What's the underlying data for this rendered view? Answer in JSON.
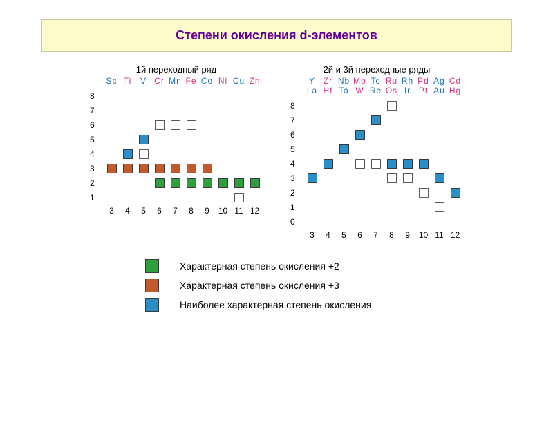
{
  "title": {
    "text": "Степени окисления d-элементов",
    "background": "#fdfacb",
    "border": "#c9c9a0",
    "fontsize": 18,
    "color": "#660099"
  },
  "colors": {
    "green": "#2e9e3f",
    "orange": "#c35a2e",
    "blue": "#2a8fc7",
    "empty_border": "#5a5a5a",
    "square_border": "#3a3a3a"
  },
  "element_colors": {
    "default": "#1a73b7",
    "alt": "#d63384"
  },
  "square": {
    "size": 14,
    "gap": 9
  },
  "y_row_height": 21,
  "chart1": {
    "subtitle": "1й переходный ряд",
    "elements": [
      {
        "t": "Sc",
        "c": "default"
      },
      {
        "t": "Ti",
        "c": "alt"
      },
      {
        "t": "V",
        "c": "default"
      },
      {
        "t": "Cr",
        "c": "alt"
      },
      {
        "t": "Mn",
        "c": "default"
      },
      {
        "t": "Fe",
        "c": "alt"
      },
      {
        "t": "Co",
        "c": "default"
      },
      {
        "t": "Ni",
        "c": "alt"
      },
      {
        "t": "Cu",
        "c": "default"
      },
      {
        "t": "Zn",
        "c": "alt"
      }
    ],
    "ylim": [
      1,
      8
    ],
    "xticks": [
      3,
      4,
      5,
      6,
      7,
      8,
      9,
      10,
      11,
      12
    ],
    "groups": [
      3,
      4,
      5,
      6,
      7,
      8,
      9,
      10,
      11,
      12
    ],
    "cells": [
      {
        "g": 3,
        "y": 3,
        "c": "orange"
      },
      {
        "g": 4,
        "y": 4,
        "c": "blue"
      },
      {
        "g": 4,
        "y": 3,
        "c": "orange"
      },
      {
        "g": 5,
        "y": 5,
        "c": "blue"
      },
      {
        "g": 5,
        "y": 4,
        "c": "empty"
      },
      {
        "g": 5,
        "y": 3,
        "c": "orange"
      },
      {
        "g": 6,
        "y": 6,
        "c": "empty"
      },
      {
        "g": 6,
        "y": 3,
        "c": "orange"
      },
      {
        "g": 6,
        "y": 2,
        "c": "green"
      },
      {
        "g": 7,
        "y": 7,
        "c": "empty"
      },
      {
        "g": 7,
        "y": 6,
        "c": "empty"
      },
      {
        "g": 7,
        "y": 3,
        "c": "orange"
      },
      {
        "g": 7,
        "y": 2,
        "c": "green"
      },
      {
        "g": 8,
        "y": 6,
        "c": "empty"
      },
      {
        "g": 8,
        "y": 3,
        "c": "orange"
      },
      {
        "g": 8,
        "y": 2,
        "c": "green"
      },
      {
        "g": 9,
        "y": 3,
        "c": "orange"
      },
      {
        "g": 9,
        "y": 2,
        "c": "green"
      },
      {
        "g": 10,
        "y": 2,
        "c": "green"
      },
      {
        "g": 11,
        "y": 2,
        "c": "green"
      },
      {
        "g": 11,
        "y": 1,
        "c": "empty"
      },
      {
        "g": 12,
        "y": 2,
        "c": "green"
      }
    ]
  },
  "chart2": {
    "subtitle": "2й и 3й  переходные ряды",
    "row1": [
      {
        "t": "Y",
        "c": "default"
      },
      {
        "t": "Zr",
        "c": "alt"
      },
      {
        "t": "Nb",
        "c": "default"
      },
      {
        "t": "Mo",
        "c": "alt"
      },
      {
        "t": "Tc",
        "c": "default"
      },
      {
        "t": "Ru",
        "c": "alt"
      },
      {
        "t": "Rh",
        "c": "default"
      },
      {
        "t": "Pd",
        "c": "alt"
      },
      {
        "t": "Ag",
        "c": "default"
      },
      {
        "t": "Cd",
        "c": "alt"
      }
    ],
    "row2": [
      {
        "t": "La",
        "c": "default"
      },
      {
        "t": "Hf",
        "c": "alt"
      },
      {
        "t": "Ta",
        "c": "default"
      },
      {
        "t": "W",
        "c": "alt"
      },
      {
        "t": "Re",
        "c": "default"
      },
      {
        "t": "Os",
        "c": "alt"
      },
      {
        "t": "Ir",
        "c": "default"
      },
      {
        "t": "Pt",
        "c": "alt"
      },
      {
        "t": "Au",
        "c": "default"
      },
      {
        "t": "Hg",
        "c": "alt"
      }
    ],
    "ylim": [
      0,
      8
    ],
    "xticks": [
      3,
      4,
      5,
      6,
      7,
      8,
      9,
      10,
      11,
      12
    ],
    "groups": [
      3,
      4,
      5,
      6,
      7,
      8,
      9,
      10,
      11,
      12
    ],
    "cells": [
      {
        "g": 3,
        "y": 3,
        "c": "blue"
      },
      {
        "g": 4,
        "y": 4,
        "c": "blue"
      },
      {
        "g": 5,
        "y": 5,
        "c": "blue"
      },
      {
        "g": 6,
        "y": 6,
        "c": "blue"
      },
      {
        "g": 6,
        "y": 4,
        "c": "empty"
      },
      {
        "g": 7,
        "y": 7,
        "c": "blue"
      },
      {
        "g": 7,
        "y": 4,
        "c": "empty"
      },
      {
        "g": 8,
        "y": 8,
        "c": "empty"
      },
      {
        "g": 8,
        "y": 4,
        "c": "blue"
      },
      {
        "g": 8,
        "y": 3,
        "c": "empty"
      },
      {
        "g": 9,
        "y": 4,
        "c": "blue"
      },
      {
        "g": 9,
        "y": 3,
        "c": "empty"
      },
      {
        "g": 10,
        "y": 4,
        "c": "blue"
      },
      {
        "g": 10,
        "y": 2,
        "c": "empty"
      },
      {
        "g": 11,
        "y": 3,
        "c": "blue"
      },
      {
        "g": 11,
        "y": 1,
        "c": "empty"
      },
      {
        "g": 12,
        "y": 2,
        "c": "blue"
      }
    ]
  },
  "legend": [
    {
      "c": "green",
      "label": "Характерная степень окисления +2"
    },
    {
      "c": "orange",
      "label": "Характерная степень окисления +3"
    },
    {
      "c": "blue",
      "label": "Наиболее характерная степень окисления"
    }
  ]
}
